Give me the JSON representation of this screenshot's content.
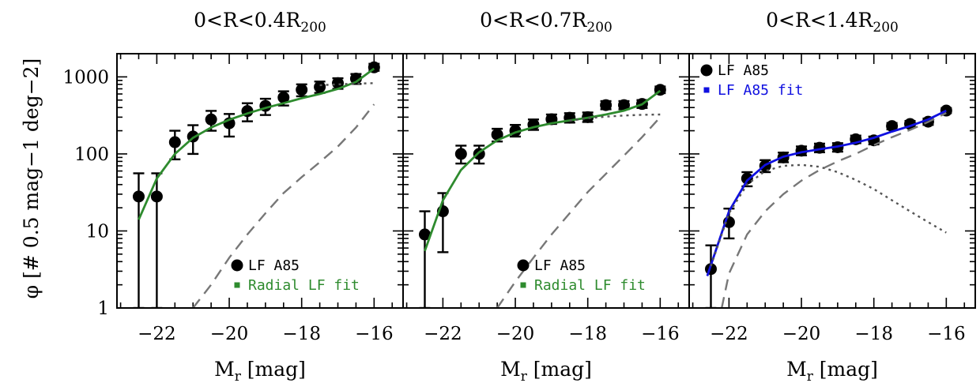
{
  "ylabel": "φ [# 0.5 mag−1 deg−2]",
  "chart_data": [
    {
      "type": "scatter",
      "title": {
        "main": "0<R<0.4R",
        "sub": "200"
      },
      "xlabel": {
        "main": "M",
        "sub": "r",
        "rest": " [mag]"
      },
      "xlim": [
        -23.1,
        -15.2
      ],
      "ylim": [
        1,
        2000
      ],
      "yscale": "log",
      "xticks": [
        -22,
        -20,
        -18,
        -16
      ],
      "xtick_labels": [
        "−22",
        "−20",
        "−18",
        "−16"
      ],
      "yticks": [
        1,
        10,
        100,
        1000
      ],
      "ytick_labels": [
        "1",
        "10",
        "100",
        "1000"
      ],
      "legend_position": "bottom-right",
      "legend": [
        {
          "label": "LF A85",
          "marker": "circle",
          "color": "#000000"
        },
        {
          "label": "Radial LF fit",
          "marker": "square",
          "color": "#2e8b2e"
        }
      ],
      "series": [
        {
          "name": "LF A85",
          "kind": "points",
          "color": "#000000",
          "points": [
            {
              "x": -22.5,
              "y": 28,
              "lo": 1,
              "hi": 56
            },
            {
              "x": -22.0,
              "y": 28,
              "lo": 1,
              "hi": 56
            },
            {
              "x": -21.5,
              "y": 142,
              "lo": 85,
              "hi": 200
            },
            {
              "x": -21.0,
              "y": 168,
              "lo": 100,
              "hi": 236
            },
            {
              "x": -20.5,
              "y": 280,
              "lo": 200,
              "hi": 362
            },
            {
              "x": -20.0,
              "y": 250,
              "lo": 168,
              "hi": 330
            },
            {
              "x": -19.5,
              "y": 360,
              "lo": 265,
              "hi": 455
            },
            {
              "x": -19.0,
              "y": 420,
              "lo": 320,
              "hi": 520
            },
            {
              "x": -18.5,
              "y": 540,
              "lo": 425,
              "hi": 650
            },
            {
              "x": -18.0,
              "y": 680,
              "lo": 560,
              "hi": 800
            },
            {
              "x": -17.5,
              "y": 740,
              "lo": 620,
              "hi": 870
            },
            {
              "x": -17.0,
              "y": 830,
              "lo": 700,
              "hi": 960
            },
            {
              "x": -16.5,
              "y": 950,
              "lo": 810,
              "hi": 1090
            },
            {
              "x": -16.0,
              "y": 1330,
              "lo": 1200,
              "hi": 1480
            }
          ]
        },
        {
          "name": "Radial LF fit",
          "kind": "line",
          "color": "#2e8b2e",
          "dash": "",
          "points": [
            [
              -22.5,
              14
            ],
            [
              -22.0,
              48
            ],
            [
              -21.5,
              100
            ],
            [
              -21.0,
              162
            ],
            [
              -20.5,
              220
            ],
            [
              -20.0,
              278
            ],
            [
              -19.5,
              335
            ],
            [
              -19.0,
              395
            ],
            [
              -18.5,
              455
            ],
            [
              -18.0,
              528
            ],
            [
              -17.5,
              600
            ],
            [
              -17.0,
              700
            ],
            [
              -16.5,
              860
            ],
            [
              -16.0,
              1280
            ]
          ]
        },
        {
          "kind": "line",
          "color": "#555555",
          "dash": "3,5",
          "points": [
            [
              -17.5,
              780
            ],
            [
              -17.0,
              800
            ],
            [
              -16.5,
              818
            ],
            [
              -16.0,
              830
            ]
          ]
        },
        {
          "kind": "line",
          "color": "#777777",
          "dash": "14,9",
          "points": [
            [
              -21.0,
              1
            ],
            [
              -20.5,
              2
            ],
            [
              -20.0,
              4.5
            ],
            [
              -19.5,
              9
            ],
            [
              -19.0,
              17
            ],
            [
              -18.5,
              31
            ],
            [
              -18.0,
              50
            ],
            [
              -17.5,
              78
            ],
            [
              -17.0,
              125
            ],
            [
              -16.5,
              220
            ],
            [
              -16.0,
              440
            ]
          ]
        }
      ]
    },
    {
      "type": "scatter",
      "title": {
        "main": "0<R<0.7R",
        "sub": "200"
      },
      "xlabel": {
        "main": "M",
        "sub": "r",
        "rest": " [mag]"
      },
      "xlim": [
        -23.1,
        -15.2
      ],
      "ylim": [
        1,
        2000
      ],
      "yscale": "log",
      "xticks": [
        -22,
        -20,
        -18,
        -16
      ],
      "xtick_labels": [
        "−22",
        "−20",
        "−18",
        "−16"
      ],
      "yticks": [
        1,
        10,
        100,
        1000
      ],
      "ytick_labels": [],
      "legend_position": "bottom-right",
      "legend": [
        {
          "label": "LF A85",
          "marker": "circle",
          "color": "#000000"
        },
        {
          "label": "Radial LF fit",
          "marker": "square",
          "color": "#2e8b2e"
        }
      ],
      "series": [
        {
          "name": "LF A85",
          "kind": "points",
          "color": "#000000",
          "points": [
            {
              "x": -22.5,
              "y": 9,
              "lo": 1,
              "hi": 18
            },
            {
              "x": -22.0,
              "y": 18,
              "lo": 5.3,
              "hi": 31
            },
            {
              "x": -21.5,
              "y": 100,
              "lo": 75,
              "hi": 128
            },
            {
              "x": -21.0,
              "y": 100,
              "lo": 75,
              "hi": 128
            },
            {
              "x": -20.5,
              "y": 178,
              "lo": 145,
              "hi": 212
            },
            {
              "x": -20.0,
              "y": 200,
              "lo": 168,
              "hi": 238
            },
            {
              "x": -19.5,
              "y": 240,
              "lo": 205,
              "hi": 280
            },
            {
              "x": -19.0,
              "y": 282,
              "lo": 245,
              "hi": 325
            },
            {
              "x": -18.5,
              "y": 295,
              "lo": 255,
              "hi": 338
            },
            {
              "x": -18.0,
              "y": 300,
              "lo": 260,
              "hi": 345
            },
            {
              "x": -17.5,
              "y": 430,
              "lo": 380,
              "hi": 485
            },
            {
              "x": -17.0,
              "y": 430,
              "lo": 380,
              "hi": 485
            },
            {
              "x": -16.5,
              "y": 445,
              "lo": 395,
              "hi": 500
            },
            {
              "x": -16.0,
              "y": 680,
              "lo": 615,
              "hi": 750
            }
          ]
        },
        {
          "name": "Radial LF fit",
          "kind": "line",
          "color": "#2e8b2e",
          "dash": "",
          "points": [
            [
              -22.5,
              5.5
            ],
            [
              -22.0,
              25
            ],
            [
              -21.5,
              62
            ],
            [
              -21.0,
              105
            ],
            [
              -20.5,
              150
            ],
            [
              -20.0,
              190
            ],
            [
              -19.5,
              222
            ],
            [
              -19.0,
              250
            ],
            [
              -18.5,
              272
            ],
            [
              -18.0,
              295
            ],
            [
              -17.5,
              325
            ],
            [
              -17.0,
              365
            ],
            [
              -16.5,
              440
            ],
            [
              -16.0,
              660
            ]
          ]
        },
        {
          "kind": "line",
          "color": "#555555",
          "dash": "3,5",
          "points": [
            [
              -18.5,
              270
            ],
            [
              -18.0,
              290
            ],
            [
              -17.5,
              305
            ],
            [
              -17.0,
              315
            ],
            [
              -16.5,
              322
            ],
            [
              -16.0,
              325
            ]
          ]
        },
        {
          "kind": "line",
          "color": "#777777",
          "dash": "14,9",
          "points": [
            [
              -20.5,
              1
            ],
            [
              -20.0,
              2.2
            ],
            [
              -19.5,
              4.5
            ],
            [
              -19.0,
              9
            ],
            [
              -18.5,
              17
            ],
            [
              -18.0,
              32
            ],
            [
              -17.5,
              55
            ],
            [
              -17.0,
              95
            ],
            [
              -16.5,
              165
            ],
            [
              -16.0,
              300
            ]
          ]
        }
      ]
    },
    {
      "type": "scatter",
      "title": {
        "main": "0<R<1.4R",
        "sub": "200"
      },
      "xlabel": {
        "main": "M",
        "sub": "r",
        "rest": " [mag]"
      },
      "xlim": [
        -23.1,
        -15.2
      ],
      "ylim": [
        1,
        2000
      ],
      "yscale": "log",
      "xticks": [
        -22,
        -20,
        -18,
        -16
      ],
      "xtick_labels": [
        "−22",
        "−20",
        "−18",
        "−16"
      ],
      "yticks": [
        1,
        10,
        100,
        1000
      ],
      "ytick_labels": [],
      "legend_position": "top-left",
      "legend": [
        {
          "label": "LF A85",
          "marker": "circle",
          "color": "#000000"
        },
        {
          "label": "LF A85 fit",
          "marker": "square",
          "color": "#1010e0"
        }
      ],
      "series": [
        {
          "name": "LF A85",
          "kind": "points",
          "color": "#000000",
          "points": [
            {
              "x": -22.5,
              "y": 3.2,
              "lo": 1,
              "hi": 6.5
            },
            {
              "x": -22.0,
              "y": 13,
              "lo": 8,
              "hi": 19.5
            },
            {
              "x": -21.5,
              "y": 48,
              "lo": 38,
              "hi": 58
            },
            {
              "x": -21.0,
              "y": 70,
              "lo": 58,
              "hi": 83
            },
            {
              "x": -20.5,
              "y": 90,
              "lo": 78,
              "hi": 104
            },
            {
              "x": -20.0,
              "y": 110,
              "lo": 96,
              "hi": 125
            },
            {
              "x": -19.5,
              "y": 120,
              "lo": 105,
              "hi": 136
            },
            {
              "x": -19.0,
              "y": 122,
              "lo": 107,
              "hi": 138
            },
            {
              "x": -18.5,
              "y": 155,
              "lo": 138,
              "hi": 173
            },
            {
              "x": -18.0,
              "y": 150,
              "lo": 133,
              "hi": 168
            },
            {
              "x": -17.5,
              "y": 230,
              "lo": 208,
              "hi": 252
            },
            {
              "x": -17.0,
              "y": 245,
              "lo": 222,
              "hi": 268
            },
            {
              "x": -16.5,
              "y": 262,
              "lo": 238,
              "hi": 288
            },
            {
              "x": -16.0,
              "y": 365,
              "lo": 338,
              "hi": 394
            }
          ]
        },
        {
          "name": "LF A85 fit",
          "kind": "line",
          "color": "#1010e0",
          "dash": "",
          "points": [
            [
              -22.6,
              2.6
            ],
            [
              -22.5,
              3.6
            ],
            [
              -22.0,
              18
            ],
            [
              -21.5,
              45
            ],
            [
              -21.0,
              72
            ],
            [
              -20.5,
              92
            ],
            [
              -20.0,
              105
            ],
            [
              -19.5,
              115
            ],
            [
              -19.0,
              125
            ],
            [
              -18.5,
              140
            ],
            [
              -18.0,
              162
            ],
            [
              -17.5,
              195
            ],
            [
              -17.0,
              230
            ],
            [
              -16.5,
              280
            ],
            [
              -16.0,
              365
            ]
          ]
        },
        {
          "kind": "line",
          "color": "#555555",
          "dash": "3,5",
          "points": [
            [
              -22.5,
              3.5
            ],
            [
              -22.0,
              17
            ],
            [
              -21.5,
              40
            ],
            [
              -21.0,
              60
            ],
            [
              -20.5,
              70
            ],
            [
              -20.0,
              72
            ],
            [
              -19.5,
              68
            ],
            [
              -19.0,
              58
            ],
            [
              -18.5,
              46
            ],
            [
              -18.0,
              35
            ],
            [
              -17.5,
              25
            ],
            [
              -17.0,
              18
            ],
            [
              -16.5,
              13
            ],
            [
              -16.0,
              9.5
            ]
          ]
        },
        {
          "kind": "line",
          "color": "#777777",
          "dash": "14,9",
          "points": [
            [
              -22.2,
              1
            ],
            [
              -22.0,
              2.8
            ],
            [
              -21.5,
              9
            ],
            [
              -21.0,
              18
            ],
            [
              -20.5,
              30
            ],
            [
              -20.0,
              45
            ],
            [
              -19.5,
              62
            ],
            [
              -19.0,
              80
            ],
            [
              -18.5,
              100
            ],
            [
              -18.0,
              130
            ],
            [
              -17.5,
              165
            ],
            [
              -17.0,
              205
            ],
            [
              -16.5,
              260
            ],
            [
              -16.0,
              340
            ]
          ]
        }
      ]
    }
  ]
}
